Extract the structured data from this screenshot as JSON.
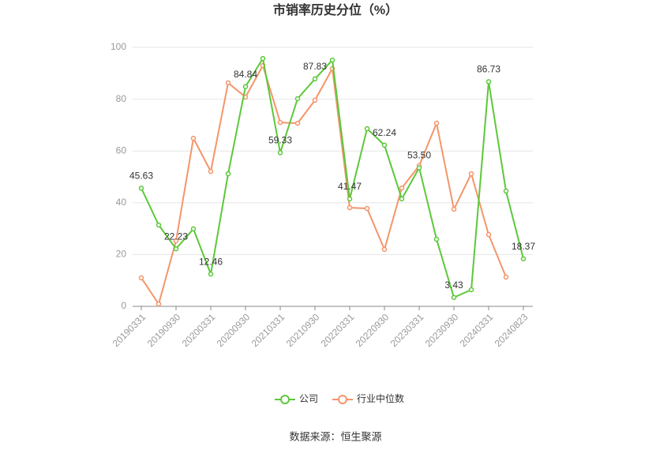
{
  "chart_data": {
    "type": "line",
    "title": "市销率历史分位（%）",
    "categories": [
      "20190331",
      null,
      "20190930",
      null,
      "20200331",
      null,
      "20200930",
      null,
      "20210331",
      null,
      "20210930",
      null,
      "20220331",
      null,
      "20220930",
      null,
      "20230331",
      null,
      "20230930",
      null,
      "20240331",
      null,
      "20240823"
    ],
    "series": [
      {
        "name": "公司",
        "color": "#5cc83a",
        "values": [
          45.63,
          31.4,
          22.23,
          29.9,
          12.46,
          51.2,
          84.84,
          95.7,
          59.33,
          80.2,
          87.83,
          95.1,
          41.47,
          68.6,
          62.24,
          41.5,
          53.5,
          25.9,
          3.43,
          6.4,
          86.73,
          44.5,
          18.37
        ],
        "value_labels": [
          "45.63",
          null,
          "22.23",
          null,
          "12.46",
          null,
          "84.84",
          null,
          "59.33",
          null,
          "87.83",
          null,
          "41.47",
          null,
          "62.24",
          null,
          "53.50",
          null,
          "3.43",
          null,
          "86.73",
          null,
          "18.37"
        ]
      },
      {
        "name": "行业中位数",
        "color": "#f4956a",
        "values": [
          11.0,
          0.9,
          25.3,
          64.9,
          52.1,
          86.3,
          80.8,
          93.0,
          71.0,
          70.7,
          79.6,
          91.8,
          38.1,
          37.8,
          22.0,
          45.7,
          54.3,
          70.7,
          37.5,
          51.2,
          27.7,
          11.3,
          null
        ]
      }
    ],
    "ylim": [
      0,
      100
    ],
    "yticks": [
      0,
      20,
      40,
      60,
      80,
      100
    ],
    "grid": true,
    "legend": "bottom",
    "source": "数据来源：恒生聚源"
  }
}
